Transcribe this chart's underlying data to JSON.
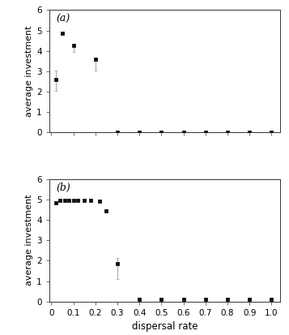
{
  "panel_a": {
    "x": [
      0.02,
      0.05,
      0.1,
      0.2,
      0.3,
      0.4,
      0.5,
      0.6,
      0.7,
      0.8,
      0.9,
      1.0
    ],
    "y": [
      2.6,
      4.85,
      4.25,
      3.6,
      0.0,
      0.0,
      0.0,
      0.0,
      0.0,
      0.0,
      0.0,
      0.0
    ],
    "yerr_low": [
      0.55,
      0.0,
      0.3,
      0.55,
      0.0,
      0.0,
      0.0,
      0.0,
      0.0,
      0.0,
      0.0,
      0.0
    ],
    "yerr_high": [
      0.45,
      0.05,
      0.1,
      0.0,
      0.0,
      0.0,
      0.0,
      0.0,
      0.0,
      0.0,
      0.0,
      0.0
    ],
    "label": "(a)",
    "ylabel": "average investment",
    "ylim": [
      0,
      6
    ],
    "yticks": [
      0,
      1,
      2,
      3,
      4,
      5,
      6
    ]
  },
  "panel_b": {
    "x": [
      0.02,
      0.04,
      0.06,
      0.08,
      0.1,
      0.12,
      0.15,
      0.18,
      0.22,
      0.25,
      0.3,
      0.4,
      0.5,
      0.6,
      0.7,
      0.8,
      0.9,
      1.0
    ],
    "y": [
      4.85,
      4.95,
      4.95,
      4.95,
      4.95,
      4.95,
      4.95,
      4.95,
      4.9,
      4.45,
      1.85,
      0.1,
      0.1,
      0.1,
      0.1,
      0.1,
      0.1,
      0.1
    ],
    "yerr_low": [
      0.0,
      0.0,
      0.0,
      0.0,
      0.0,
      0.0,
      0.0,
      0.0,
      0.0,
      0.0,
      0.75,
      0.0,
      0.0,
      0.0,
      0.0,
      0.0,
      0.0,
      0.0
    ],
    "yerr_high": [
      0.0,
      0.0,
      0.0,
      0.0,
      0.0,
      0.0,
      0.0,
      0.0,
      0.0,
      0.0,
      0.3,
      0.0,
      0.0,
      0.0,
      0.0,
      0.0,
      0.0,
      0.0
    ],
    "label": "(b)",
    "ylabel": "average investment",
    "xlabel": "dispersal rate",
    "ylim": [
      0,
      6
    ],
    "yticks": [
      0,
      1,
      2,
      3,
      4,
      5,
      6
    ]
  },
  "xticks": [
    0.0,
    0.1,
    0.2,
    0.3,
    0.4,
    0.5,
    0.6,
    0.7,
    0.8,
    0.9,
    1.0
  ],
  "xtick_labels": [
    "0",
    "0.1",
    "0.2",
    "0.3",
    "0.4",
    "0.5",
    "0.6",
    "0.7",
    "0.8",
    "0.9",
    "1.0"
  ],
  "marker": "s",
  "markersize": 3.5,
  "color": "#111111",
  "ecolor": "#aaaaaa",
  "capsize": 1.5,
  "background_color": "#ffffff"
}
